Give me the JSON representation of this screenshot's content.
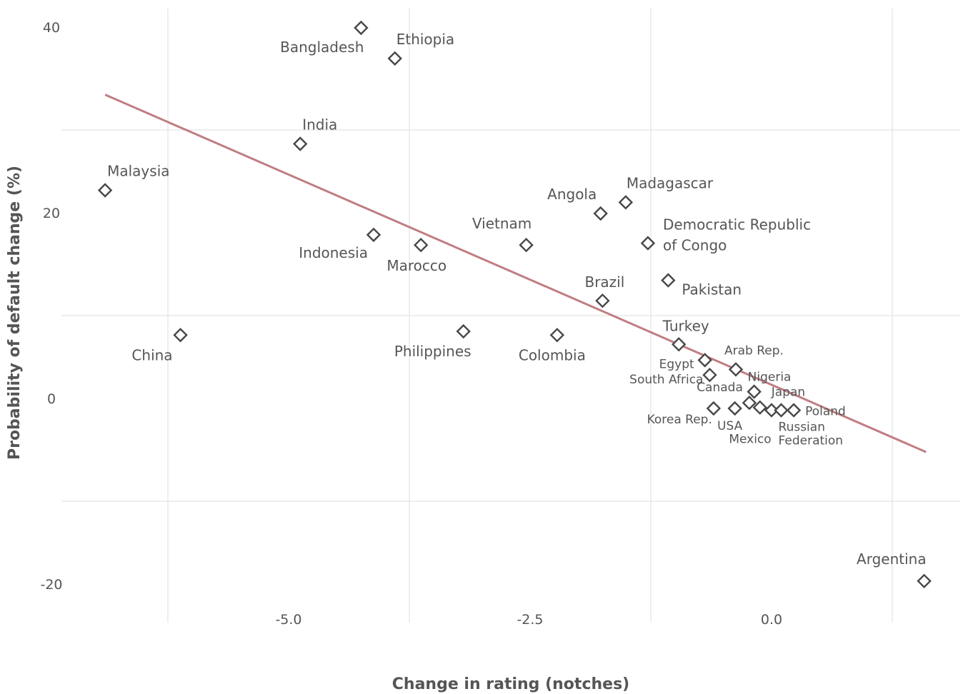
{
  "chart_data": {
    "type": "scatter",
    "xlabel": "Change in rating (notches)",
    "ylabel": "Probability of default change (%)",
    "xlim": [
      -7.4,
      1.95
    ],
    "ylim": [
      -22,
      43
    ],
    "x_ticks": [
      {
        "value": -5.0,
        "label": "-5.0"
      },
      {
        "value": -2.5,
        "label": "-2.5"
      },
      {
        "value": 0.0,
        "label": "0.0"
      }
    ],
    "y_ticks": [
      {
        "value": 40,
        "label": "40"
      },
      {
        "value": 20,
        "label": "20"
      },
      {
        "value": 0,
        "label": "0"
      },
      {
        "value": -20,
        "label": "-20"
      }
    ],
    "grid": true,
    "trend_line": {
      "x": [
        -6.9,
        1.6
      ],
      "y": [
        33.8,
        -4.7
      ],
      "color": "#c07d83"
    },
    "points": [
      {
        "name": "Bangladesh",
        "x": -4.25,
        "y": 41.0,
        "label": [
          "Bangladesh"
        ],
        "anchor": "end",
        "dx": 4,
        "dy": 34,
        "small": false
      },
      {
        "name": "Ethiopia",
        "x": -3.9,
        "y": 37.7,
        "label": [
          "Ethiopia"
        ],
        "anchor": "start",
        "dx": 2,
        "dy": -20,
        "small": false
      },
      {
        "name": "India",
        "x": -4.88,
        "y": 28.5,
        "label": [
          "India"
        ],
        "anchor": "start",
        "dx": 3,
        "dy": -20,
        "small": false
      },
      {
        "name": "Malaysia",
        "x": -6.9,
        "y": 23.5,
        "label": [
          "Malaysia"
        ],
        "anchor": "start",
        "dx": 3,
        "dy": -20,
        "small": false
      },
      {
        "name": "Indonesia",
        "x": -4.12,
        "y": 18.7,
        "label": [
          "Indonesia"
        ],
        "anchor": "end",
        "dx": -8,
        "dy": 32,
        "small": false
      },
      {
        "name": "Marocco",
        "x": -3.63,
        "y": 17.6,
        "label": [
          "Marocco"
        ],
        "anchor": "middle",
        "dx": -6,
        "dy": 36,
        "small": false
      },
      {
        "name": "Vietnam",
        "x": -2.54,
        "y": 17.6,
        "label": [
          "Vietnam"
        ],
        "anchor": "middle",
        "dx": -34,
        "dy": -23,
        "small": false
      },
      {
        "name": "Angola",
        "x": -1.77,
        "y": 21.0,
        "label": [
          "Angola"
        ],
        "anchor": "middle",
        "dx": -40,
        "dy": -20,
        "small": false
      },
      {
        "name": "Madagascar",
        "x": -1.51,
        "y": 22.2,
        "label": [
          "Madagascar"
        ],
        "anchor": "start",
        "dx": 1,
        "dy": -20,
        "small": false
      },
      {
        "name": "Democratic Republic of Congo",
        "x": -1.28,
        "y": 17.8,
        "label": [
          "Democratic Republic",
          "of Congo"
        ],
        "anchor": "start",
        "dx": 21,
        "dy": -19,
        "small": false
      },
      {
        "name": "Pakistan",
        "x": -1.07,
        "y": 13.8,
        "label": [
          "Pakistan"
        ],
        "anchor": "start",
        "dx": 19,
        "dy": 20,
        "small": false
      },
      {
        "name": "Brazil",
        "x": -1.75,
        "y": 11.6,
        "label": [
          "Brazil"
        ],
        "anchor": "middle",
        "dx": 3,
        "dy": -19,
        "small": false
      },
      {
        "name": "China",
        "x": -6.12,
        "y": 7.9,
        "label": [
          "China"
        ],
        "anchor": "end",
        "dx": -11,
        "dy": 35,
        "small": false
      },
      {
        "name": "Philippines",
        "x": -3.19,
        "y": 8.3,
        "label": [
          "Philippines"
        ],
        "anchor": "middle",
        "dx": -43,
        "dy": 35,
        "small": false
      },
      {
        "name": "Colombia",
        "x": -2.22,
        "y": 7.9,
        "label": [
          "Colombia"
        ],
        "anchor": "middle",
        "dx": -7,
        "dy": 35,
        "small": false
      },
      {
        "name": "Turkey",
        "x": -0.96,
        "y": 6.9,
        "label": [
          "Turkey"
        ],
        "anchor": "middle",
        "dx": 10,
        "dy": -19,
        "small": false
      },
      {
        "name": "Egypt",
        "x": -0.69,
        "y": 5.2,
        "label": [
          "Egypt"
        ],
        "anchor": "end",
        "dx": -15,
        "dy": 11,
        "small": true
      },
      {
        "name": "South Africa",
        "x": -0.64,
        "y": 3.6,
        "label": [
          "South Africa"
        ],
        "anchor": "end",
        "dx": -9,
        "dy": 12,
        "small": true
      },
      {
        "name": "Arab Rep.",
        "x": -0.37,
        "y": 4.2,
        "label": [
          "Arab Rep."
        ],
        "anchor": "start",
        "dx": -16,
        "dy": -21,
        "small": true
      },
      {
        "name": "Nigeria",
        "x": -0.18,
        "y": 1.8,
        "label": [
          "Nigeria"
        ],
        "anchor": "start",
        "dx": -9,
        "dy": -15,
        "small": true
      },
      {
        "name": "Canada",
        "x": -0.23,
        "y": 0.6,
        "label": [
          "Canada"
        ],
        "anchor": "end",
        "dx": -9,
        "dy": -16,
        "small": true
      },
      {
        "name": "Japan",
        "x": -0.12,
        "y": 0.1,
        "label": [
          "Japan"
        ],
        "anchor": "start",
        "dx": 16,
        "dy": -16,
        "small": true
      },
      {
        "name": "Korea Rep.",
        "x": -0.6,
        "y": 0.0,
        "label": [
          "Korea Rep."
        ],
        "anchor": "end",
        "dx": -2,
        "dy": 21,
        "small": true
      },
      {
        "name": "USA",
        "x": -0.38,
        "y": 0.0,
        "label": [
          "USA"
        ],
        "anchor": "middle",
        "dx": -7,
        "dy": 30,
        "small": true
      },
      {
        "name": "Mexico",
        "x": 0.0,
        "y": -0.2,
        "label": [
          "Mexico"
        ],
        "anchor": "middle",
        "dx": -30,
        "dy": 46,
        "small": true
      },
      {
        "name": "Russian Federation",
        "x": 0.1,
        "y": -0.2,
        "label": [
          "Russian",
          "Federation"
        ],
        "anchor": "start",
        "dx": -4,
        "dy": 29,
        "small": true
      },
      {
        "name": "Poland",
        "x": 0.23,
        "y": -0.2,
        "label": [
          "Poland"
        ],
        "anchor": "start",
        "dx": 16,
        "dy": 7,
        "small": true
      },
      {
        "name": "Argentina",
        "x": 1.58,
        "y": -18.6,
        "label": [
          "Argentina"
        ],
        "anchor": "end",
        "dx": 3,
        "dy": -24,
        "small": false
      }
    ]
  }
}
